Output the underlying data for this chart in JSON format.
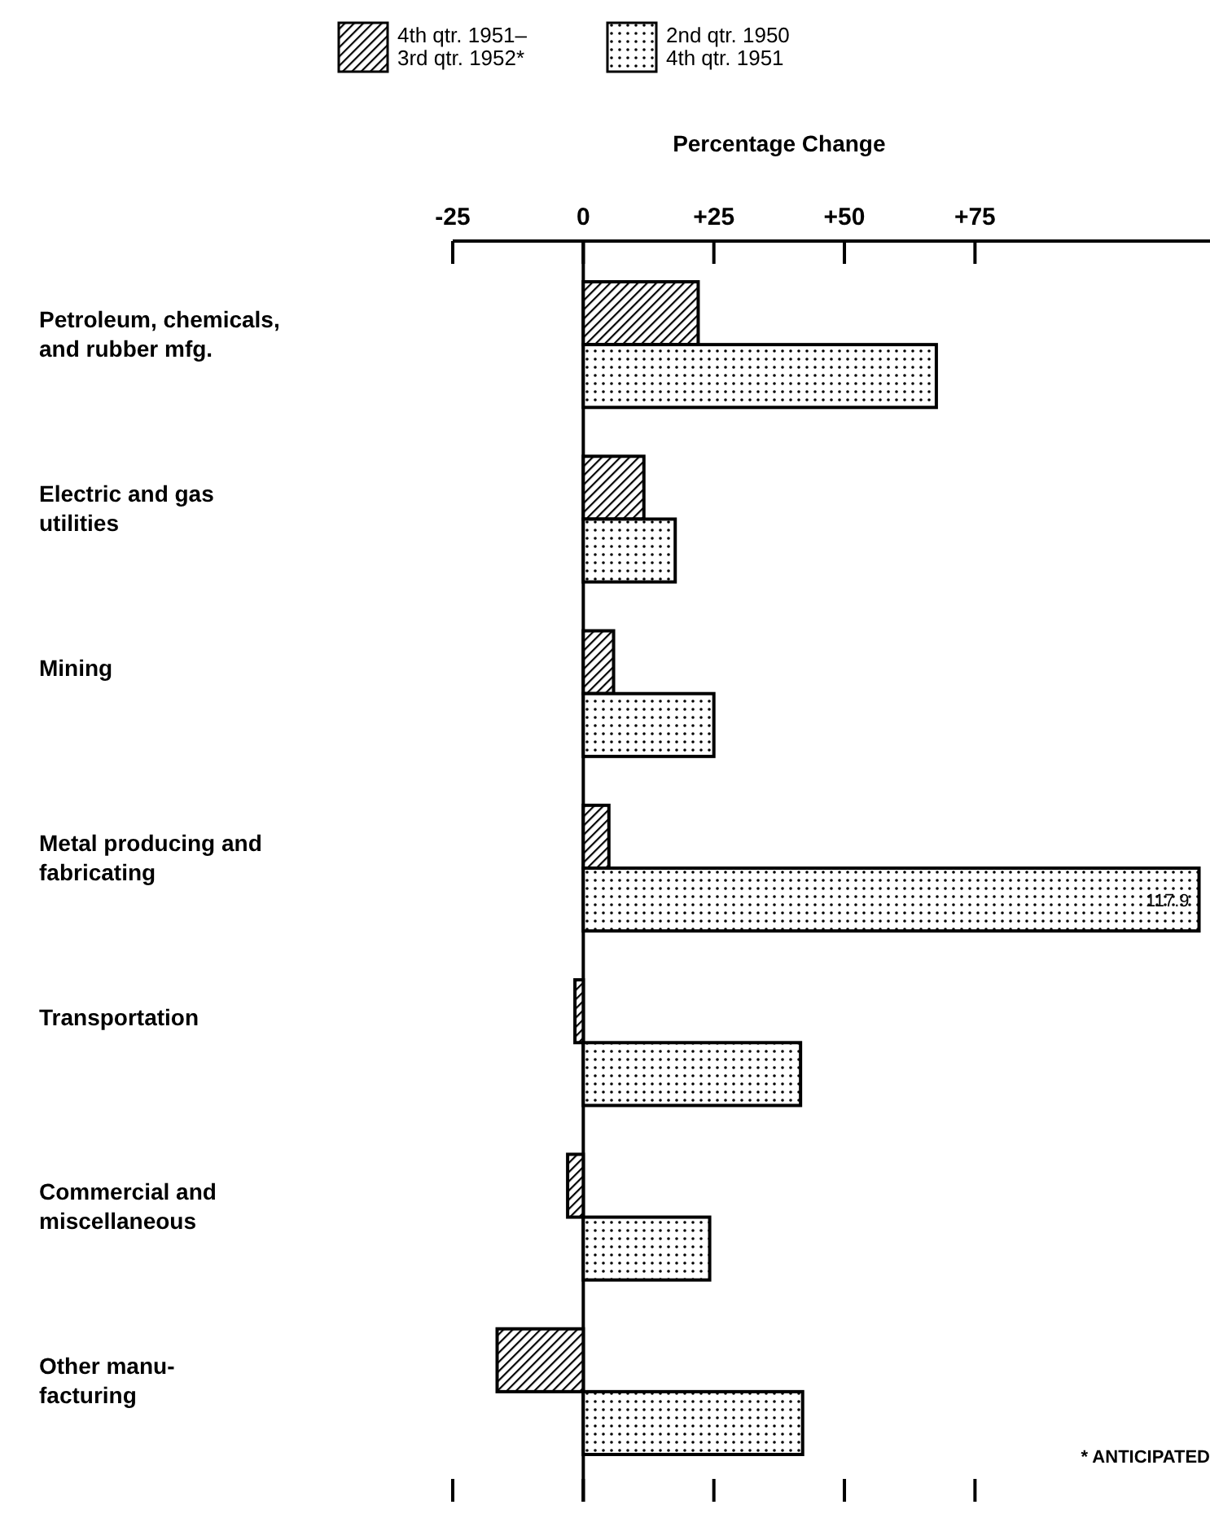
{
  "chart_data": {
    "type": "bar",
    "orientation": "horizontal",
    "xlabel": "Percentage Change",
    "categories": [
      "Petroleum, chemicals,\nand rubber mfg.",
      "Electric and gas\nutilities",
      "Mining",
      "Metal producing and\nfabricating",
      "Transportation",
      "Commercial and\nmiscellaneous",
      "Other manu-\nfacturing"
    ],
    "series": [
      {
        "name": "4th qtr. 1951–\n3rd qtr. 1952*",
        "color": "#000000",
        "values": [
          22.0,
          11.6,
          5.8,
          4.9,
          -1.6,
          -3.0,
          -16.5
        ]
      },
      {
        "name": "2nd qtr. 1950\n4th qtr. 1951",
        "color": "#000000",
        "values": [
          67.6,
          17.6,
          25.0,
          117.9,
          41.6,
          24.2,
          42.0
        ],
        "value_labels": [
          null,
          null,
          null,
          "117.9",
          null,
          null,
          null
        ]
      }
    ],
    "xlim": [
      -25,
      120
    ],
    "xticks": [
      {
        "value": -25,
        "label": "-25"
      },
      0,
      {
        "value": 25,
        "label": "+25"
      },
      {
        "value": 50,
        "label": "+50"
      },
      {
        "value": 75,
        "label": "+75"
      }
    ],
    "legend": "top",
    "annotations": [
      "* ANTICIPATED"
    ]
  }
}
